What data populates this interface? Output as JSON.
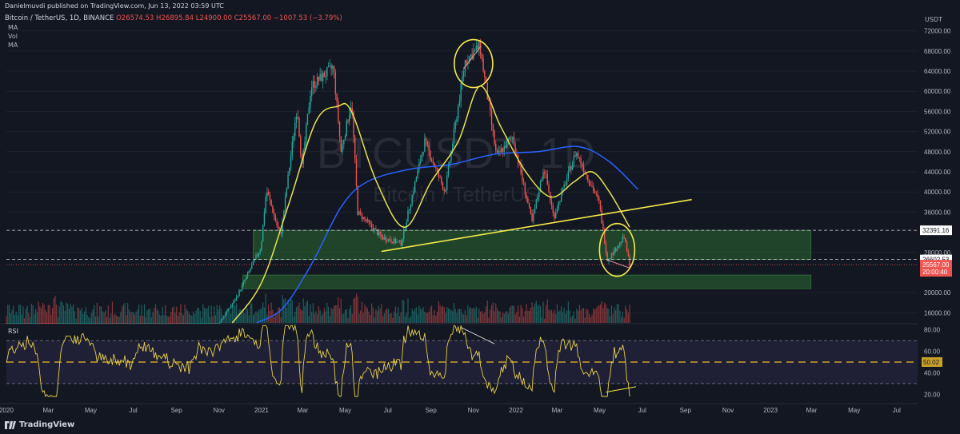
{
  "header": {
    "publisher": "Danielmuvdi published on TradingView.com, Jun 13, 2022 03:59 UTC"
  },
  "symbol_line": {
    "symbol": "Bitcoin / TetherUS, 1D, BINANCE",
    "open": "O26574.53",
    "high": "H26895.84",
    "low": "L24900.00",
    "close": "C25567.00",
    "change": "−1007.53 (−3.79%)"
  },
  "indicators": {
    "ma1": "MA",
    "vol": "Vol",
    "ma2": "MA",
    "rsi": "RSI"
  },
  "watermark": {
    "ticker": "BTCUSDT, 1D",
    "name": "Bitcoin / TetherUS"
  },
  "price_axis": {
    "currency": "USDT",
    "ticks": [
      "72000.00",
      "68000.00",
      "64000.00",
      "60000.00",
      "56000.00",
      "52000.00",
      "48000.00",
      "44000.00",
      "40000.00",
      "36000.00",
      "28000.00",
      "20000.00",
      "16000.00"
    ]
  },
  "price_tags": [
    {
      "label": "32391.16",
      "value": 32391.16,
      "bg": "#ffffff",
      "fg": "#131722"
    },
    {
      "label": "26602.53",
      "value": 26602.53,
      "bg": "#ffffff",
      "fg": "#131722"
    },
    {
      "label": "25567.00",
      "value": 25567.0,
      "bg": "#ef5350",
      "fg": "#ffffff"
    },
    {
      "label": "20:00:40",
      "value": 24150,
      "bg": "#ef5350",
      "fg": "#ffffff"
    }
  ],
  "rsi_axis": {
    "ticks": [
      "80.00",
      "60.00",
      "40.00",
      "20.00"
    ],
    "current": "50.02"
  },
  "time_axis": {
    "labels": [
      "2020",
      "Mar",
      "May",
      "Jul",
      "Sep",
      "Nov",
      "2021",
      "Mar",
      "May",
      "Jul",
      "Sep",
      "Nov",
      "2022",
      "Mar",
      "May",
      "Jul",
      "Sep",
      "Nov",
      "2023",
      "Mar",
      "May",
      "Jul"
    ]
  },
  "footer": {
    "brand": "TradingView"
  },
  "colors": {
    "background": "#131722",
    "up": "#26a69a",
    "down": "#ef5350",
    "ma_fast": "#e6e04a",
    "ma_slow": "#2962ff",
    "rsi_line": "#e6d04a",
    "rsi_band": "#7e57c2",
    "zone": "#2e7d32",
    "annotation": "#f5e94a"
  },
  "chart_data": {
    "type": "candlestick",
    "title": "Bitcoin / TetherUS, 1D, BINANCE",
    "ylim": [
      14000,
      74000
    ],
    "xrange": [
      "2020-01-01",
      "2023-07-31"
    ],
    "price_path": [
      {
        "date": "2020-01-01",
        "price": 7200
      },
      {
        "date": "2020-02-14",
        "price": 10300
      },
      {
        "date": "2020-03-13",
        "price": 4900
      },
      {
        "date": "2020-05-01",
        "price": 8800
      },
      {
        "date": "2020-07-01",
        "price": 9200
      },
      {
        "date": "2020-08-15",
        "price": 11800
      },
      {
        "date": "2020-09-20",
        "price": 10500
      },
      {
        "date": "2020-10-31",
        "price": 13800
      },
      {
        "date": "2020-11-25",
        "price": 18800
      },
      {
        "date": "2020-12-31",
        "price": 29000
      },
      {
        "date": "2021-01-08",
        "price": 40500
      },
      {
        "date": "2021-01-28",
        "price": 31000
      },
      {
        "date": "2021-02-21",
        "price": 57000
      },
      {
        "date": "2021-02-28",
        "price": 45000
      },
      {
        "date": "2021-03-13",
        "price": 61000
      },
      {
        "date": "2021-04-14",
        "price": 64800
      },
      {
        "date": "2021-04-25",
        "price": 48000
      },
      {
        "date": "2021-05-10",
        "price": 58000
      },
      {
        "date": "2021-05-19",
        "price": 36000
      },
      {
        "date": "2021-06-22",
        "price": 31000
      },
      {
        "date": "2021-07-20",
        "price": 29800
      },
      {
        "date": "2021-08-23",
        "price": 50000
      },
      {
        "date": "2021-09-21",
        "price": 40000
      },
      {
        "date": "2021-10-20",
        "price": 66000
      },
      {
        "date": "2021-11-10",
        "price": 69000
      },
      {
        "date": "2021-12-04",
        "price": 47000
      },
      {
        "date": "2021-12-27",
        "price": 51000
      },
      {
        "date": "2022-01-24",
        "price": 34000
      },
      {
        "date": "2022-02-10",
        "price": 45000
      },
      {
        "date": "2022-02-24",
        "price": 35000
      },
      {
        "date": "2022-03-28",
        "price": 48000
      },
      {
        "date": "2022-04-30",
        "price": 38000
      },
      {
        "date": "2022-05-12",
        "price": 26500
      },
      {
        "date": "2022-06-05",
        "price": 31000
      },
      {
        "date": "2022-06-13",
        "price": 25567
      }
    ],
    "ma_fast": [
      {
        "date": "2020-11-20",
        "price": 14000
      },
      {
        "date": "2021-01-01",
        "price": 22000
      },
      {
        "date": "2021-02-10",
        "price": 38000
      },
      {
        "date": "2021-03-20",
        "price": 54000
      },
      {
        "date": "2021-04-20",
        "price": 57000
      },
      {
        "date": "2021-05-10",
        "price": 56000
      },
      {
        "date": "2021-06-15",
        "price": 42000
      },
      {
        "date": "2021-07-25",
        "price": 33000
      },
      {
        "date": "2021-09-01",
        "price": 42000
      },
      {
        "date": "2021-10-10",
        "price": 50000
      },
      {
        "date": "2021-11-10",
        "price": 61000
      },
      {
        "date": "2021-12-10",
        "price": 53000
      },
      {
        "date": "2022-01-15",
        "price": 44000
      },
      {
        "date": "2022-02-20",
        "price": 39000
      },
      {
        "date": "2022-03-25",
        "price": 42000
      },
      {
        "date": "2022-04-20",
        "price": 44000
      },
      {
        "date": "2022-05-15",
        "price": 40000
      },
      {
        "date": "2022-06-13",
        "price": 33000
      }
    ],
    "ma_slow": [
      {
        "date": "2020-12-25",
        "price": 14000
      },
      {
        "date": "2021-02-01",
        "price": 17000
      },
      {
        "date": "2021-03-15",
        "price": 26000
      },
      {
        "date": "2021-04-25",
        "price": 37000
      },
      {
        "date": "2021-06-01",
        "price": 42000
      },
      {
        "date": "2021-08-01",
        "price": 44500
      },
      {
        "date": "2021-10-01",
        "price": 45500
      },
      {
        "date": "2021-12-01",
        "price": 47500
      },
      {
        "date": "2022-02-01",
        "price": 48000
      },
      {
        "date": "2022-04-01",
        "price": 49000
      },
      {
        "date": "2022-05-15",
        "price": 46000
      },
      {
        "date": "2022-06-25",
        "price": 40500
      }
    ],
    "support_zones": [
      {
        "from": "2020-12-20",
        "to": "2023-02-28",
        "low": 26600,
        "high": 32391.16
      },
      {
        "from": "2020-12-05",
        "to": "2023-02-28",
        "low": 20800,
        "high": 23500
      }
    ],
    "trendline": {
      "start": {
        "date": "2021-06-22",
        "price": 28200
      },
      "end": {
        "date": "2022-09-10",
        "price": 38500
      }
    },
    "horizontal_levels": [
      32391.16,
      26602.53,
      25567.0
    ],
    "rsi": {
      "overbought": 70,
      "oversold": 30,
      "mid": 50,
      "ylim": [
        15,
        85
      ],
      "current": 50.02
    }
  }
}
